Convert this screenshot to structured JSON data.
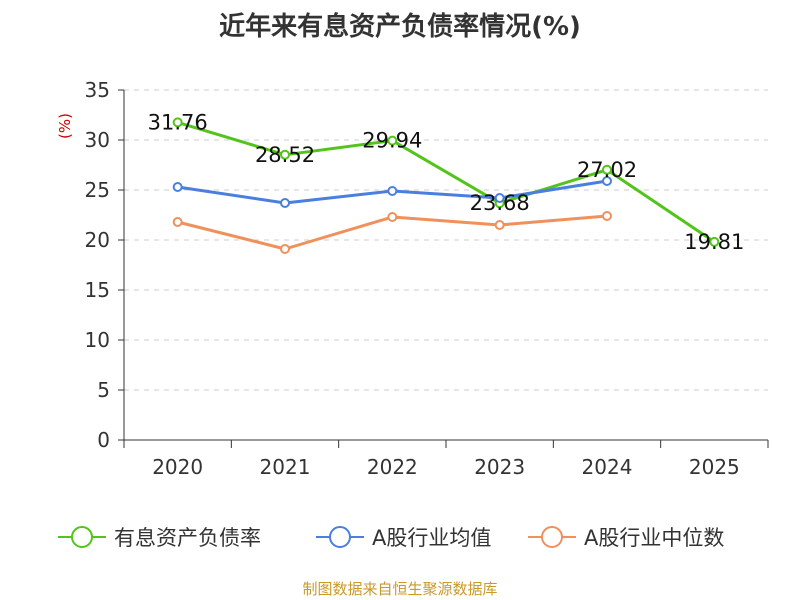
{
  "chart_data": {
    "type": "line",
    "title": "近年来有息资产负债率情况(%)",
    "ylabel": "(%)",
    "xlabel": "",
    "ylim": [
      0,
      35
    ],
    "yticks": [
      0,
      5,
      10,
      15,
      20,
      25,
      30,
      35
    ],
    "categories": [
      "2020",
      "2021",
      "2022",
      "2023",
      "2024",
      "2025"
    ],
    "grid": true,
    "legend_position": "bottom",
    "series": [
      {
        "name": "有息资产负债率",
        "color": "#52c41a",
        "values": [
          31.76,
          28.52,
          29.94,
          23.68,
          27.02,
          19.81
        ],
        "labels": [
          "31.76",
          "28.52",
          "29.94",
          "23.68",
          "27.02",
          "19.81"
        ]
      },
      {
        "name": "A股行业均值",
        "color": "#4a7fe0",
        "values": [
          25.3,
          23.7,
          24.9,
          24.2,
          25.9,
          null
        ]
      },
      {
        "name": "A股行业中位数",
        "color": "#f0905a",
        "values": [
          21.8,
          19.1,
          22.3,
          21.5,
          22.4,
          null
        ]
      }
    ]
  },
  "footer": {
    "source": "制图数据来自恒生聚源数据库"
  }
}
